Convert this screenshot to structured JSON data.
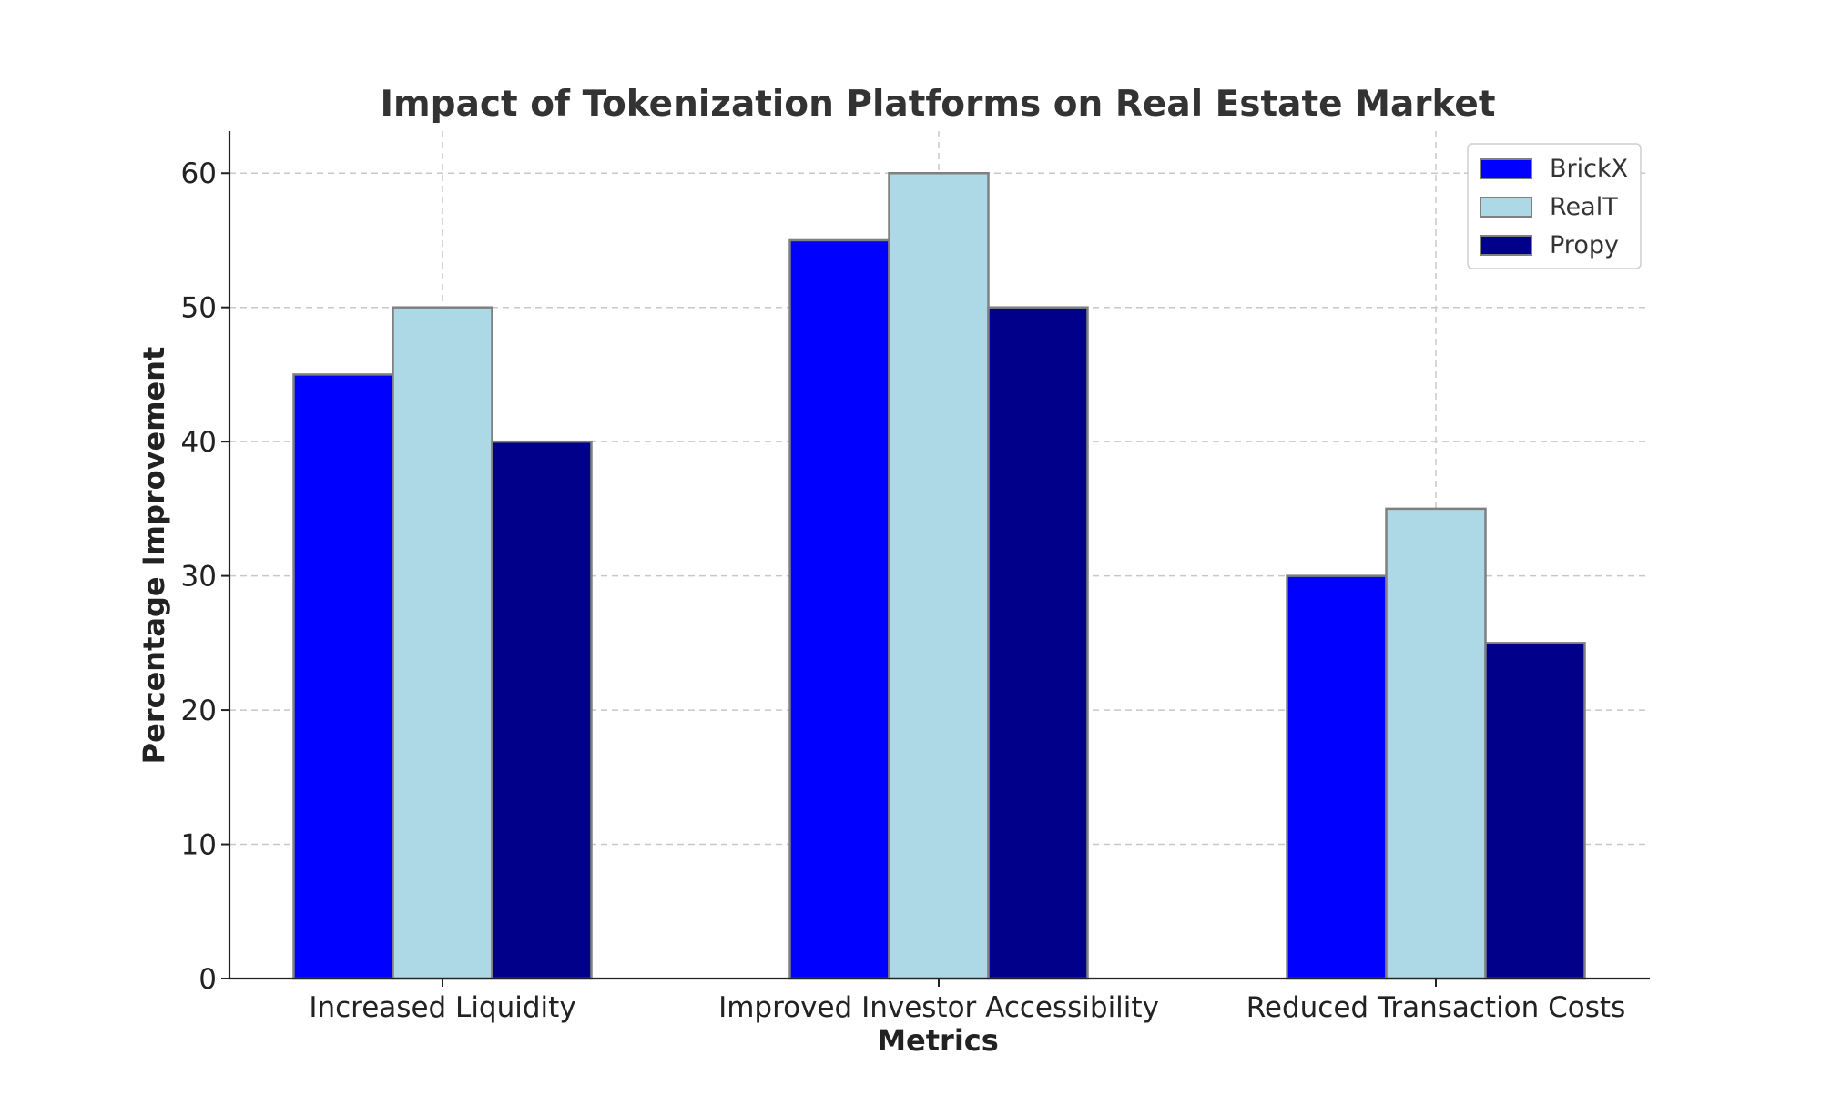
{
  "chart_data": {
    "type": "bar",
    "title": "Impact of Tokenization Platforms on Real Estate Market",
    "xlabel": "Metrics",
    "ylabel": "Percentage Improvement",
    "categories": [
      "Increased Liquidity",
      "Improved Investor Accessibility",
      "Reduced Transaction Costs"
    ],
    "series": [
      {
        "name": "BrickX",
        "values": [
          45,
          55,
          30
        ],
        "color": "#0000ff"
      },
      {
        "name": "RealT",
        "values": [
          50,
          60,
          35
        ],
        "color": "#add8e6"
      },
      {
        "name": "Propy",
        "values": [
          40,
          50,
          25
        ],
        "color": "#00008b"
      }
    ],
    "ylim": [
      0,
      63
    ],
    "yticks": [
      0,
      10,
      20,
      30,
      40,
      50,
      60
    ],
    "grid": true,
    "legend_position": "top-right",
    "colors": {
      "bar_edge": "#808080",
      "grid": "#c8c8c8",
      "axis": "#222222",
      "title": "#333333"
    }
  }
}
